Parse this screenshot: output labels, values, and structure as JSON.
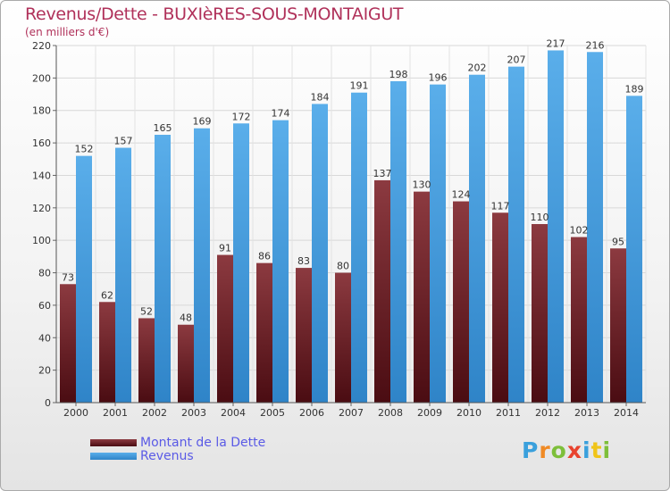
{
  "title": "Revenus/Dette - BUXIèRES-SOUS-MONTAIGUT",
  "subtitle": "(en milliers d'€)",
  "colors": {
    "dette": "#7a1f2a",
    "revenus": "#4a9de0",
    "title": "#b0315a",
    "legend_text": "#5a5ae6"
  },
  "legend": {
    "dette": "Montant de la Dette",
    "revenus": "Revenus"
  },
  "logo": {
    "text": "Proxiti",
    "letters": [
      {
        "ch": "P",
        "color": "#3aa0dc"
      },
      {
        "ch": "r",
        "color": "#f08a24"
      },
      {
        "ch": "o",
        "color": "#7dbf3a"
      },
      {
        "ch": "x",
        "color": "#e8432e"
      },
      {
        "ch": "i",
        "color": "#3aa0dc"
      },
      {
        "ch": "t",
        "color": "#f0c419"
      },
      {
        "ch": "i",
        "color": "#7dbf3a"
      }
    ]
  },
  "chart_data": {
    "type": "bar",
    "categories": [
      "2000",
      "2001",
      "2002",
      "2003",
      "2004",
      "2005",
      "2006",
      "2007",
      "2008",
      "2009",
      "2010",
      "2011",
      "2012",
      "2013",
      "2014"
    ],
    "series": [
      {
        "name": "Montant de la Dette",
        "values": [
          73,
          62,
          52,
          48,
          91,
          86,
          83,
          80,
          137,
          130,
          124,
          117,
          110,
          102,
          95
        ]
      },
      {
        "name": "Revenus",
        "values": [
          152,
          157,
          165,
          169,
          172,
          174,
          184,
          191,
          198,
          196,
          202,
          207,
          217,
          216,
          189
        ]
      }
    ],
    "ylim": [
      0,
      220
    ],
    "yticks": [
      0,
      20,
      40,
      60,
      80,
      100,
      120,
      140,
      160,
      180,
      200,
      220
    ],
    "grid": true,
    "legend_position": "bottom-left"
  }
}
